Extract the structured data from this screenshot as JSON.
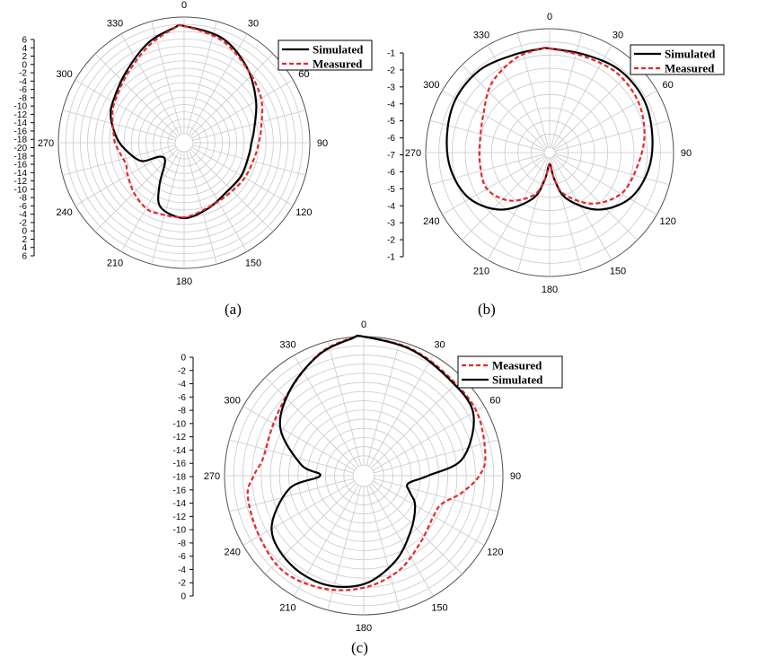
{
  "colors": {
    "simulated": "#000000",
    "measured": "#e8262a",
    "grid": "#c9c9c9",
    "axis": "#000000"
  },
  "captions": [
    "(a)",
    "(b)",
    "(c)"
  ],
  "angle_labels": [
    "0",
    "30",
    "60",
    "90",
    "120",
    "150",
    "180",
    "210",
    "240",
    "270",
    "300",
    "330"
  ],
  "chart_data": [
    {
      "type": "polar-line",
      "caption": "(a)",
      "radial_tick_labels": [
        "6",
        "4",
        "2",
        "0",
        "-2",
        "-4",
        "-6",
        "-8",
        "-10",
        "-12",
        "-14",
        "-16",
        "-18",
        "-20",
        "-18",
        "-16",
        "-14",
        "-12",
        "-10",
        "-8",
        "-6",
        "-4",
        "-2",
        "0",
        "2",
        "4",
        "6"
      ],
      "rlim": [
        -20,
        6
      ],
      "angle_labels": [
        "0",
        "30",
        "60",
        "90",
        "120",
        "150",
        "180",
        "210",
        "240",
        "270",
        "300",
        "330"
      ],
      "grid": true,
      "legend_position": "top-right",
      "legend": [
        "Simulated",
        "Measured"
      ],
      "series": [
        {
          "name": "Simulated",
          "style": "solid",
          "angles": [
            0,
            20,
            40,
            60,
            80,
            90,
            100,
            120,
            140,
            160,
            180,
            200,
            210,
            225,
            240,
            245,
            250,
            260,
            270,
            280,
            290,
            300,
            320,
            340,
            355
          ],
          "values": [
            4.0,
            2.8,
            -0.2,
            -3.5,
            -6.2,
            -7.0,
            -7.3,
            -7.3,
            -7.5,
            -6.4,
            -5.2,
            -6.7,
            -11.0,
            -16.0,
            -15.8,
            -12.4,
            -11.0,
            -9.4,
            -7.6,
            -6.1,
            -4.6,
            -3.7,
            -1.7,
            1.6,
            3.7
          ]
        },
        {
          "name": "Measured",
          "style": "dashed",
          "angles": [
            0,
            20,
            40,
            60,
            80,
            90,
            100,
            120,
            140,
            160,
            180,
            200,
            210,
            225,
            240,
            245,
            250,
            260,
            270,
            280,
            290,
            300,
            320,
            340,
            355
          ],
          "values": [
            4.0,
            2.3,
            -0.3,
            -2.2,
            -4.6,
            -5.4,
            -5.9,
            -6.4,
            -6.9,
            -6.6,
            -5.4,
            -5.2,
            -5.1,
            -6.2,
            -7.5,
            -7.9,
            -8.2,
            -7.6,
            -6.6,
            -6.0,
            -5.0,
            -4.1,
            -2.2,
            1.0,
            3.6
          ]
        }
      ]
    },
    {
      "type": "polar-line",
      "caption": "(b)",
      "radial_tick_labels": [
        "-1",
        "-2",
        "-3",
        "-4",
        "-5",
        "-6",
        "-7",
        "-6",
        "-5",
        "-4",
        "-3",
        "-2",
        "-1"
      ],
      "rlim": [
        -7,
        -1
      ],
      "angle_labels": [
        "0",
        "30",
        "60",
        "90",
        "120",
        "150",
        "180",
        "210",
        "240",
        "270",
        "300",
        "330"
      ],
      "grid": true,
      "legend_position": "top-right",
      "legend": [
        "Simulated",
        "Measured"
      ],
      "series": [
        {
          "name": "Simulated",
          "style": "solid",
          "angles": [
            0,
            20,
            40,
            60,
            80,
            100,
            120,
            140,
            160,
            170,
            180,
            190,
            200,
            220,
            240,
            260,
            280,
            300,
            320,
            340,
            355
          ],
          "values": [
            -2.0,
            -2.0,
            -1.8,
            -1.8,
            -2.0,
            -2.2,
            -2.6,
            -3.5,
            -4.8,
            -5.9,
            -6.7,
            -5.9,
            -4.8,
            -3.5,
            -2.6,
            -2.2,
            -2.0,
            -1.8,
            -1.8,
            -2.0,
            -2.0
          ]
        },
        {
          "name": "Measured",
          "style": "dashed",
          "angles": [
            0,
            20,
            40,
            60,
            80,
            100,
            120,
            140,
            160,
            170,
            180,
            190,
            200,
            220,
            240,
            260,
            280,
            300,
            320,
            340,
            355
          ],
          "values": [
            -2.0,
            -2.1,
            -2.0,
            -2.1,
            -2.4,
            -2.8,
            -3.1,
            -3.9,
            -5.0,
            -5.9,
            -6.7,
            -5.9,
            -5.0,
            -4.1,
            -3.6,
            -3.7,
            -3.7,
            -3.4,
            -2.7,
            -2.2,
            -2.0
          ]
        }
      ]
    },
    {
      "type": "polar-line",
      "caption": "(c)",
      "radial_tick_labels": [
        "0",
        "-2",
        "-4",
        "-6",
        "-8",
        "-10",
        "-12",
        "-14",
        "-16",
        "-18",
        "-16",
        "-14",
        "-12",
        "-10",
        "-8",
        "-6",
        "-4",
        "-2",
        "0"
      ],
      "rlim": [
        -18,
        0
      ],
      "angle_labels": [
        "0",
        "30",
        "60",
        "90",
        "120",
        "150",
        "180",
        "210",
        "240",
        "270",
        "300",
        "330"
      ],
      "grid": true,
      "legend_position": "top-right",
      "legend": [
        "Measured",
        "Simulated"
      ],
      "series": [
        {
          "name": "Measured",
          "style": "dashed",
          "angles": [
            0,
            20,
            40,
            60,
            80,
            90,
            100,
            110,
            120,
            140,
            160,
            180,
            200,
            220,
            240,
            260,
            270,
            280,
            300,
            320,
            340,
            355
          ],
          "values": [
            0.0,
            -0.5,
            -1.2,
            -1.3,
            -2.2,
            -3.3,
            -5.6,
            -7.9,
            -8.2,
            -7.2,
            -5.3,
            -3.8,
            -2.7,
            -2.0,
            -2.6,
            -3.0,
            -4.1,
            -5.2,
            -4.9,
            -3.6,
            -1.3,
            -0.1
          ]
        },
        {
          "name": "Simulated",
          "style": "solid",
          "angles": [
            0,
            20,
            40,
            60,
            80,
            90,
            100,
            110,
            120,
            140,
            160,
            180,
            200,
            220,
            240,
            260,
            270,
            280,
            300,
            320,
            340,
            355
          ],
          "values": [
            0.0,
            -0.6,
            -1.4,
            -1.8,
            -5.4,
            -10.5,
            -13.2,
            -12.6,
            -11.2,
            -9.3,
            -6.7,
            -4.3,
            -3.3,
            -3.4,
            -4.6,
            -8.9,
            -13.4,
            -10.6,
            -6.0,
            -3.6,
            -1.4,
            -0.2
          ]
        }
      ]
    }
  ]
}
